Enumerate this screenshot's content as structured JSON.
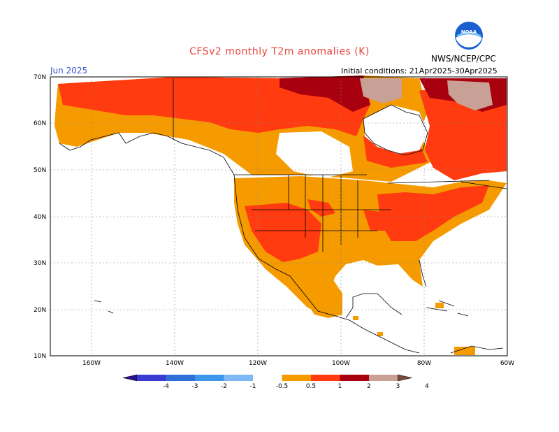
{
  "title": "CFSv2 monthly T2m anomalies (K)",
  "agency": "NWS/NCEP/CPC",
  "logo_text": "NOAA",
  "month_label": "Jun 2025",
  "init_conditions": "Initial conditions: 21Apr2025-30Apr2025",
  "lat_labels": [
    "70N",
    "60N",
    "50N",
    "40N",
    "30N",
    "20N",
    "10N"
  ],
  "lon_labels": [
    "160W",
    "140W",
    "120W",
    "100W",
    "80W",
    "60W"
  ],
  "colorbar": {
    "labels": [
      "-4",
      "-3",
      "-2",
      "-1",
      "-0.5",
      "0.5",
      "1",
      "2",
      "3",
      "4"
    ],
    "colors": [
      "#2c0f8e",
      "#3a3bd3",
      "#2f6fd8",
      "#3f97ec",
      "#7eb8f5",
      "#ffffff",
      "#f59b00",
      "#ff3b0f",
      "#a8000e",
      "#c9a095",
      "#7a4a3a"
    ]
  },
  "colors": {
    "land_0_5_1": "#f59b00",
    "land_1_2": "#ff3b0f",
    "land_2_3": "#a8000e",
    "land_3_4": "#c9a095",
    "ocean": "#ffffff",
    "title": "#e8443a",
    "month": "#3a57c8"
  }
}
